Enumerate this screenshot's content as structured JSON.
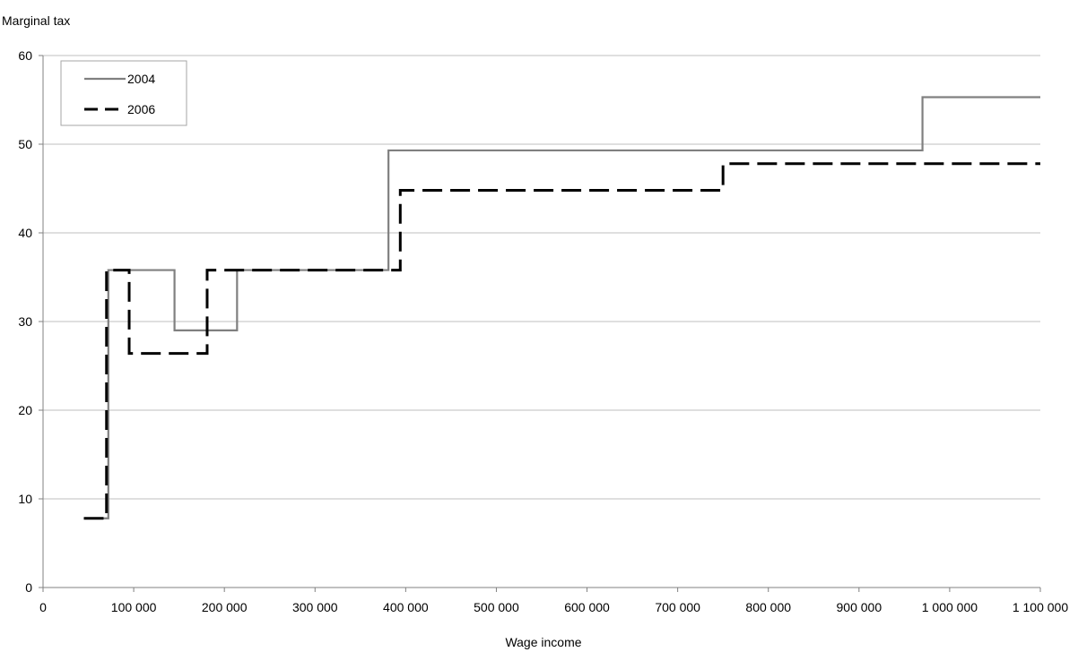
{
  "chart_data": {
    "type": "line",
    "step": true,
    "ylabel": "Marginal tax",
    "xlabel": "Wage income",
    "xlim": [
      0,
      1100000
    ],
    "ylim": [
      0,
      60
    ],
    "grid": true,
    "legend_position": "top-left",
    "x_ticks": [
      {
        "value": 0,
        "label": "0"
      },
      {
        "value": 100000,
        "label": "100 000"
      },
      {
        "value": 200000,
        "label": "200 000"
      },
      {
        "value": 300000,
        "label": "300 000"
      },
      {
        "value": 400000,
        "label": "400 000"
      },
      {
        "value": 500000,
        "label": "500 000"
      },
      {
        "value": 600000,
        "label": "600 000"
      },
      {
        "value": 700000,
        "label": "700 000"
      },
      {
        "value": 800000,
        "label": "800 000"
      },
      {
        "value": 900000,
        "label": "900 000"
      },
      {
        "value": 1000000,
        "label": "1 000 000"
      },
      {
        "value": 1100000,
        "label": "1 100 000"
      }
    ],
    "y_ticks": [
      {
        "value": 0,
        "label": "0"
      },
      {
        "value": 10,
        "label": "10"
      },
      {
        "value": 20,
        "label": "20"
      },
      {
        "value": 30,
        "label": "30"
      },
      {
        "value": 40,
        "label": "40"
      },
      {
        "value": 50,
        "label": "50"
      },
      {
        "value": 60,
        "label": "60"
      }
    ],
    "series": [
      {
        "name": "2004",
        "color": "#808080",
        "style": "solid",
        "points": [
          [
            45000,
            7.8
          ],
          [
            72000,
            7.8
          ],
          [
            72000,
            35.8
          ],
          [
            145000,
            35.8
          ],
          [
            145000,
            29.0
          ],
          [
            214000,
            29.0
          ],
          [
            214000,
            35.8
          ],
          [
            381000,
            35.8
          ],
          [
            381000,
            49.3
          ],
          [
            970000,
            49.3
          ],
          [
            970000,
            55.3
          ],
          [
            1100000,
            55.3
          ]
        ]
      },
      {
        "name": "2006",
        "color": "#000000",
        "style": "dashed",
        "points": [
          [
            45000,
            7.8
          ],
          [
            70000,
            7.8
          ],
          [
            70000,
            35.8
          ],
          [
            95000,
            35.8
          ],
          [
            95000,
            26.4
          ],
          [
            181000,
            26.4
          ],
          [
            181000,
            35.8
          ],
          [
            394000,
            35.8
          ],
          [
            394000,
            44.8
          ],
          [
            750000,
            44.8
          ],
          [
            750000,
            47.8
          ],
          [
            1100000,
            47.8
          ]
        ]
      }
    ]
  }
}
